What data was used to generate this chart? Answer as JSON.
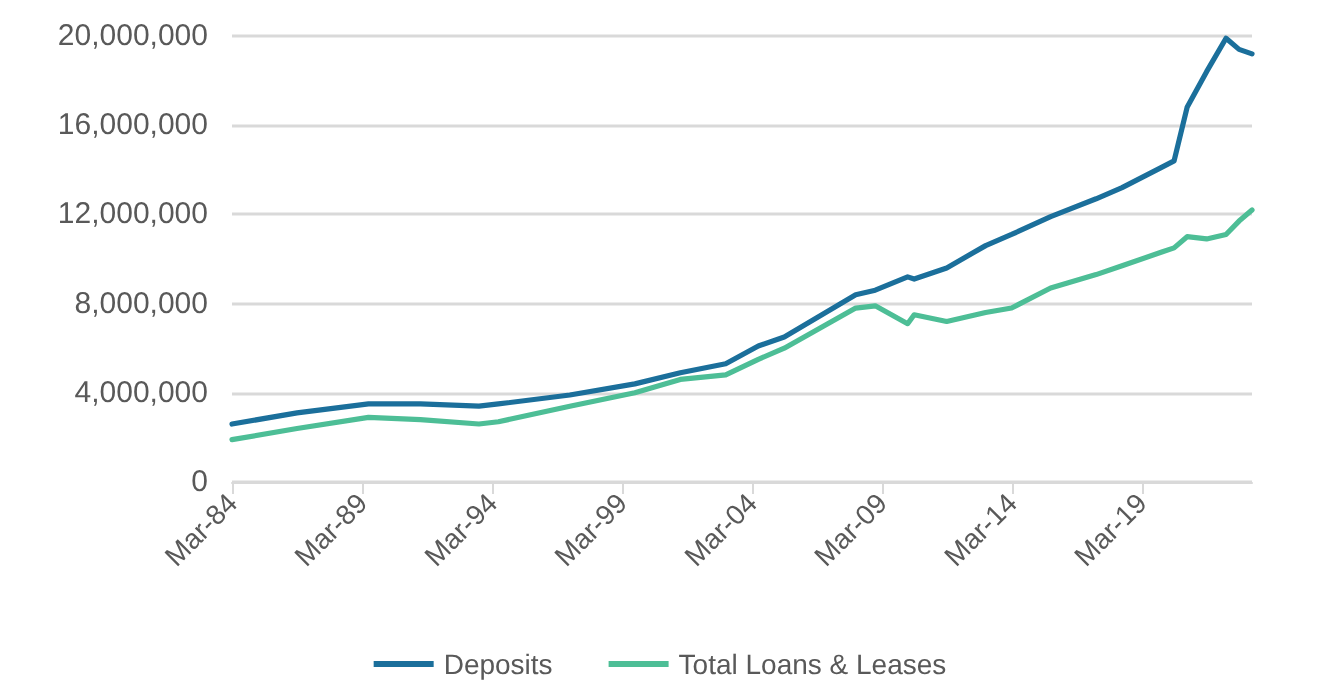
{
  "chart_data": {
    "type": "line",
    "x": [
      "1984-03",
      "1986-09",
      "1989-06",
      "1991-06",
      "1993-09",
      "1994-06",
      "1997-03",
      "1999-09",
      "2001-06",
      "2003-03",
      "2004-06",
      "2005-06",
      "2008-03",
      "2008-12",
      "2010-03",
      "2010-06",
      "2011-09",
      "2013-03",
      "2014-03",
      "2015-09",
      "2017-06",
      "2018-06",
      "2019-12",
      "2020-06",
      "2020-12",
      "2021-09",
      "2022-06",
      "2022-12",
      "2023-06"
    ],
    "series": [
      {
        "name": "Deposits",
        "color": "#1b6f9b",
        "values": [
          2600000,
          3100000,
          3500000,
          3500000,
          3400000,
          3500000,
          3900000,
          4400000,
          4900000,
          5300000,
          6100000,
          6500000,
          8400000,
          8600000,
          9200000,
          9100000,
          9600000,
          10600000,
          11100000,
          11900000,
          12700000,
          13200000,
          14100000,
          14400000,
          16800000,
          18400000,
          19900000,
          19400000,
          19200000
        ]
      },
      {
        "name": "Total Loans & Leases",
        "color": "#4dbe96",
        "values": [
          1900000,
          2400000,
          2900000,
          2800000,
          2600000,
          2700000,
          3400000,
          4000000,
          4600000,
          4800000,
          5500000,
          6000000,
          7800000,
          7900000,
          7100000,
          7500000,
          7200000,
          7600000,
          7800000,
          8700000,
          9300000,
          9700000,
          10300000,
          10500000,
          11000000,
          10900000,
          11100000,
          11700000,
          12200000
        ]
      }
    ],
    "xlim": [
      "1984-03",
      "2023-06"
    ],
    "xticks": [
      {
        "value": "1984-03",
        "label": "Mar-84"
      },
      {
        "value": "1989-03",
        "label": "Mar-89"
      },
      {
        "value": "1994-03",
        "label": "Mar-94"
      },
      {
        "value": "1999-03",
        "label": "Mar-99"
      },
      {
        "value": "2004-03",
        "label": "Mar-04"
      },
      {
        "value": "2009-03",
        "label": "Mar-09"
      },
      {
        "value": "2014-03",
        "label": "Mar-14"
      },
      {
        "value": "2019-03",
        "label": "Mar-19"
      }
    ],
    "ylim": [
      0,
      20000000
    ],
    "yticks": [
      {
        "value": 0,
        "label": "0"
      },
      {
        "value": 4000000,
        "label": "4,000,000"
      },
      {
        "value": 8000000,
        "label": "8,000,000"
      },
      {
        "value": 12000000,
        "label": "12,000,000"
      },
      {
        "value": 16000000,
        "label": "16,000,000"
      },
      {
        "value": 20000000,
        "label": "20,000,000"
      }
    ],
    "grid": "y",
    "legend": "bottom",
    "marker": "none",
    "line_style": "solid"
  }
}
